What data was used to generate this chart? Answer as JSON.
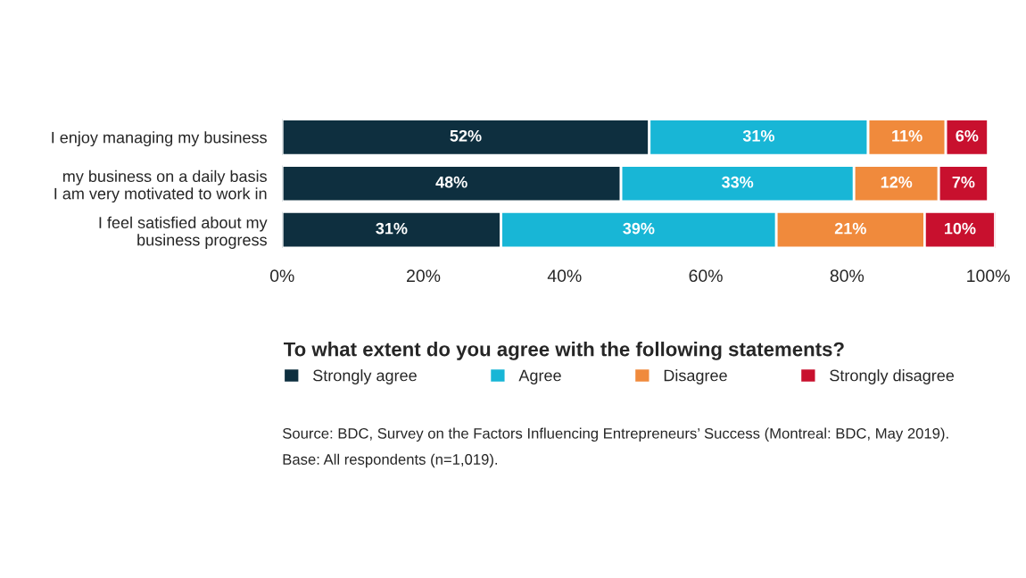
{
  "chart_data": {
    "type": "bar",
    "orientation": "horizontal",
    "stacked": true,
    "categories": [
      "I enjoy managing my business",
      "my business on a daily basis\nI am very motivated to work in",
      "I feel satisfied about my\nbusiness progress"
    ],
    "series": [
      {
        "name": "Strongly agree",
        "color": "#0e2f3f",
        "values": [
          52,
          48,
          31
        ],
        "value_labels": [
          "52%",
          "48%",
          "31%"
        ]
      },
      {
        "name": "Agree",
        "color": "#18b6d6",
        "values": [
          31,
          33,
          39
        ],
        "value_labels": [
          "31%",
          "33%",
          "39%"
        ]
      },
      {
        "name": "Disagree",
        "color": "#f08a3c",
        "values": [
          11,
          12,
          21
        ],
        "value_labels": [
          "11%",
          "12%",
          "21%"
        ]
      },
      {
        "name": "Strongly disagree",
        "color": "#c8102e",
        "values": [
          6,
          7,
          10
        ],
        "value_labels": [
          "6%",
          "7%",
          "10%"
        ]
      }
    ],
    "xlim": [
      0,
      101
    ],
    "xticks": [
      {
        "value": 0,
        "label": "0%"
      },
      {
        "value": 20,
        "label": "20%"
      },
      {
        "value": 40,
        "label": "40%"
      },
      {
        "value": 60,
        "label": "60%"
      },
      {
        "value": 80,
        "label": "80%"
      },
      {
        "value": 100,
        "label": "100%"
      }
    ],
    "legend_title": "To what extent do you agree with the following statements?",
    "legend": "bottom",
    "grid": false,
    "annotations": [
      "Source: BDC, Survey on the Factors Influencing Entrepreneurs’ Success (Montreal: BDC, May 2019).",
      "Base: All respondents (n=1,019)."
    ]
  }
}
